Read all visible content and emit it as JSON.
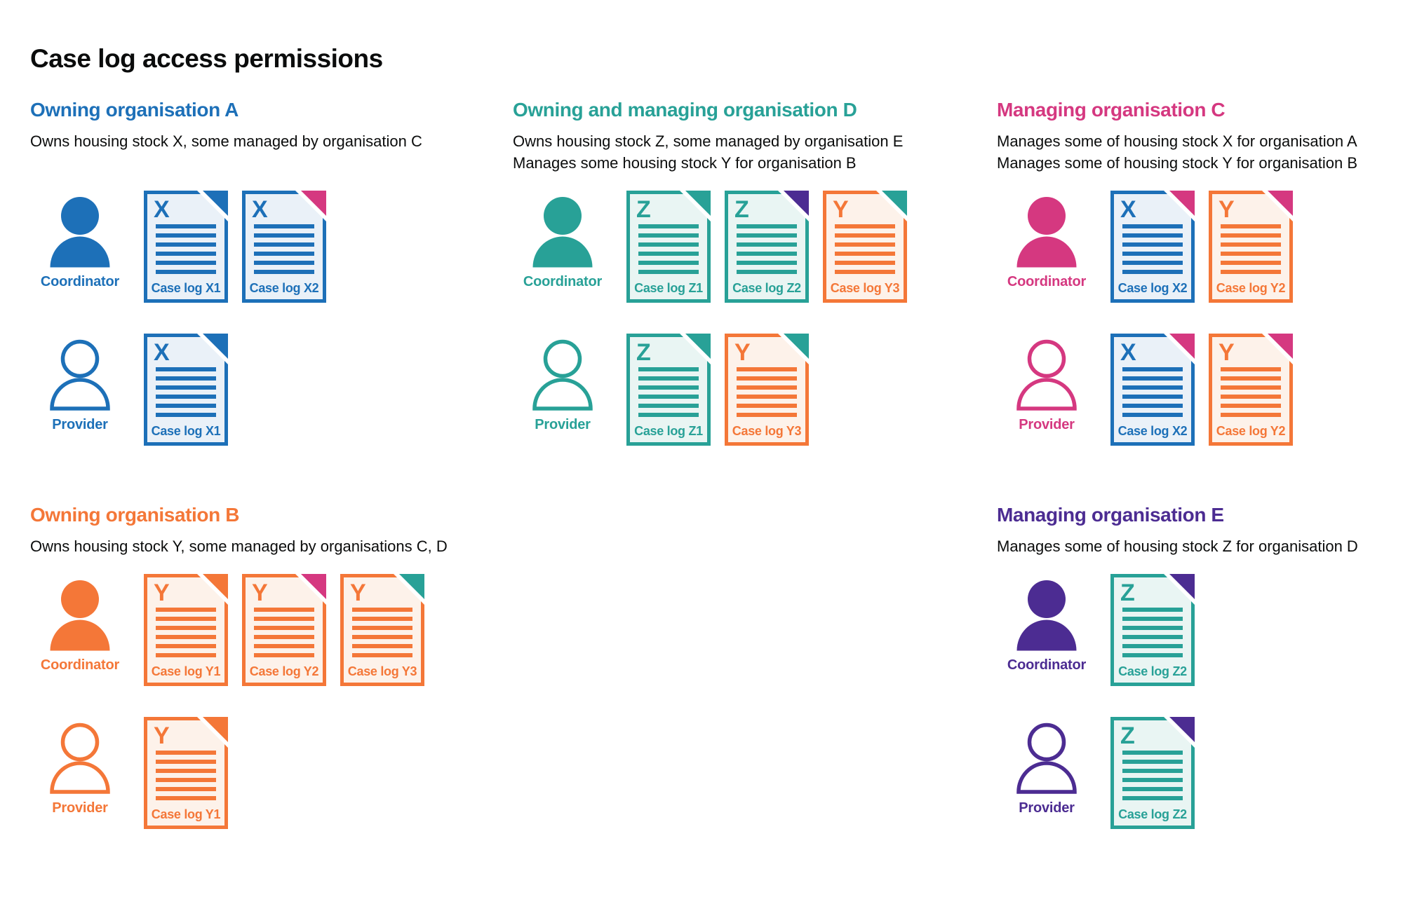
{
  "title": "Case log access permissions",
  "colors": {
    "blue": "#1d70b8",
    "teal": "#28a197",
    "orange": "#f47738",
    "pink": "#d53880",
    "purple": "#4c2c92",
    "text": "#0b0c0c",
    "blue_tint": "#eaf1f8",
    "teal_tint": "#e9f5f3",
    "orange_tint": "#fdf2ea"
  },
  "roles": {
    "coordinator": "Coordinator",
    "provider": "Provider"
  },
  "sections": [
    {
      "id": "org-a",
      "heading": "Owning organisation A",
      "color": "blue",
      "description": [
        "Owns housing stock X, some managed by organisation C"
      ],
      "rows": [
        {
          "role": "coordinator",
          "docs": [
            {
              "letter": "X",
              "label": "Case log X1",
              "doc_color": "blue",
              "fold_color": "blue"
            },
            {
              "letter": "X",
              "label": "Case log X2",
              "doc_color": "blue",
              "fold_color": "pink"
            }
          ]
        },
        {
          "role": "provider",
          "docs": [
            {
              "letter": "X",
              "label": "Case log X1",
              "doc_color": "blue",
              "fold_color": "blue"
            }
          ]
        }
      ]
    },
    {
      "id": "org-d",
      "heading": "Owning and managing organisation D",
      "color": "teal",
      "description": [
        "Owns housing stock Z, some managed by organisation E",
        "Manages some housing stock Y for organisation B"
      ],
      "rows": [
        {
          "role": "coordinator",
          "docs": [
            {
              "letter": "Z",
              "label": "Case log Z1",
              "doc_color": "teal",
              "fold_color": "teal"
            },
            {
              "letter": "Z",
              "label": "Case log Z2",
              "doc_color": "teal",
              "fold_color": "purple"
            },
            {
              "letter": "Y",
              "label": "Case log Y3",
              "doc_color": "orange",
              "fold_color": "teal"
            }
          ]
        },
        {
          "role": "provider",
          "docs": [
            {
              "letter": "Z",
              "label": "Case log Z1",
              "doc_color": "teal",
              "fold_color": "teal"
            },
            {
              "letter": "Y",
              "label": "Case log Y3",
              "doc_color": "orange",
              "fold_color": "teal"
            }
          ]
        }
      ]
    },
    {
      "id": "org-c",
      "heading": "Managing organisation C",
      "color": "pink",
      "description": [
        "Manages some of housing stock X for organisation A",
        "Manages some of housing stock Y for organisation B"
      ],
      "rows": [
        {
          "role": "coordinator",
          "docs": [
            {
              "letter": "X",
              "label": "Case log X2",
              "doc_color": "blue",
              "fold_color": "pink"
            },
            {
              "letter": "Y",
              "label": "Case log Y2",
              "doc_color": "orange",
              "fold_color": "pink"
            }
          ]
        },
        {
          "role": "provider",
          "docs": [
            {
              "letter": "X",
              "label": "Case log X2",
              "doc_color": "blue",
              "fold_color": "pink"
            },
            {
              "letter": "Y",
              "label": "Case log Y2",
              "doc_color": "orange",
              "fold_color": "pink"
            }
          ]
        }
      ]
    },
    {
      "id": "org-b",
      "heading": "Owning organisation B",
      "color": "orange",
      "description": [
        "Owns housing stock Y, some managed by organisations C, D"
      ],
      "rows": [
        {
          "role": "coordinator",
          "docs": [
            {
              "letter": "Y",
              "label": "Case log Y1",
              "doc_color": "orange",
              "fold_color": "orange"
            },
            {
              "letter": "Y",
              "label": "Case log Y2",
              "doc_color": "orange",
              "fold_color": "pink"
            },
            {
              "letter": "Y",
              "label": "Case log Y3",
              "doc_color": "orange",
              "fold_color": "teal"
            }
          ]
        },
        {
          "role": "provider",
          "docs": [
            {
              "letter": "Y",
              "label": "Case log Y1",
              "doc_color": "orange",
              "fold_color": "orange"
            }
          ]
        }
      ]
    },
    {
      "id": "org-e",
      "heading": "Managing organisation E",
      "color": "purple",
      "description": [
        "Manages some of housing stock Z for organisation D"
      ],
      "rows": [
        {
          "role": "coordinator",
          "docs": [
            {
              "letter": "Z",
              "label": "Case log Z2",
              "doc_color": "teal",
              "fold_color": "purple"
            }
          ]
        },
        {
          "role": "provider",
          "docs": [
            {
              "letter": "Z",
              "label": "Case log Z2",
              "doc_color": "teal",
              "fold_color": "purple"
            }
          ]
        }
      ]
    }
  ]
}
